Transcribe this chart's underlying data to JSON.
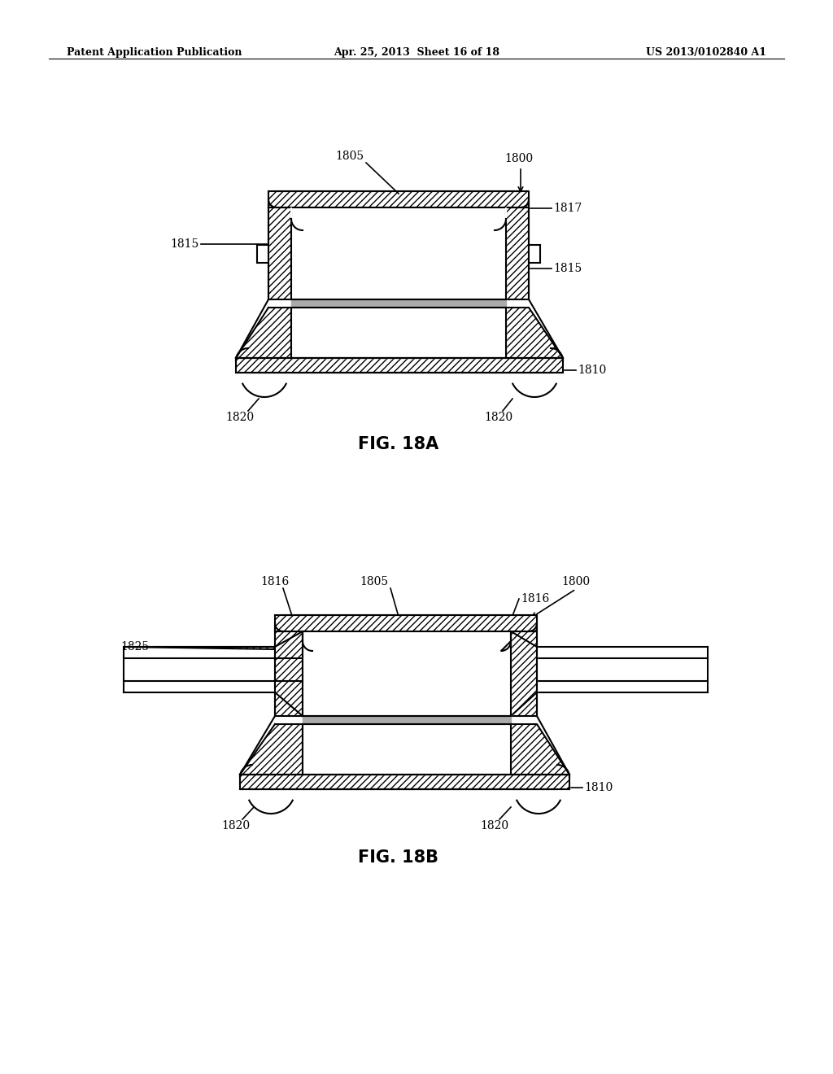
{
  "bg_color": "#ffffff",
  "line_color": "#000000",
  "header_left": "Patent Application Publication",
  "header_center": "Apr. 25, 2013  Sheet 16 of 18",
  "header_right": "US 2013/0102840 A1",
  "fig18a_label": "FIG. 18A",
  "fig18b_label": "FIG. 18B",
  "label_fontsize": 10,
  "fig_label_fontsize": 15
}
